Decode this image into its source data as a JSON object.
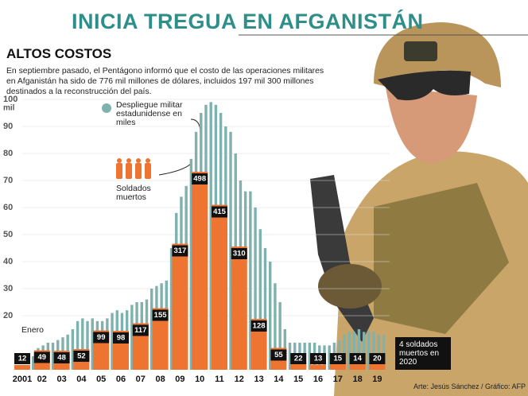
{
  "title": "INICIA TREGUA EN AFGANISTÁN",
  "subtitle": "ALTOS COSTOS",
  "description": "En septiembre pasado, el Pentágono informó que el costo de las operaciones militares en Afganistán ha sido de 776 mil millones de dólares, incluidos 197 mil 300 millones destinados a la reconstrucción del país.",
  "credit": "Arte: Jesús Sánchez / Gráfico: AFP",
  "chart_data": [
    {
      "type": "bar",
      "ylabel": "mil",
      "ylim": [
        0,
        100
      ],
      "yticks": [
        20,
        30,
        40,
        50,
        60,
        70,
        80,
        90,
        100
      ],
      "grid": true,
      "annotations": [
        "Enero"
      ],
      "series": [
        {
          "name": "Despliegue militar estadunidense en miles",
          "color": "#7fb2ae",
          "values": [
            5,
            8,
            9,
            10,
            10,
            11,
            12,
            13,
            15,
            18,
            19,
            18,
            19,
            18,
            18,
            19,
            21,
            22,
            21,
            22,
            24,
            25,
            25,
            26,
            30,
            31,
            32,
            33,
            45,
            58,
            64,
            68,
            78,
            88,
            95,
            98,
            99,
            98,
            95,
            90,
            88,
            80,
            70,
            66,
            66,
            60,
            52,
            45,
            40,
            32,
            25,
            15,
            10,
            10,
            10,
            10,
            10,
            10,
            9,
            9,
            9,
            10,
            11,
            13,
            14,
            14,
            15,
            14,
            14,
            14,
            13,
            13
          ]
        }
      ]
    },
    {
      "type": "bar",
      "categories": [
        "2001",
        "02",
        "03",
        "04",
        "05",
        "06",
        "07",
        "08",
        "09",
        "10",
        "11",
        "12",
        "13",
        "14",
        "15",
        "16",
        "17",
        "18",
        "19"
      ],
      "annotations": [
        "4 soldados muertos en 2020"
      ],
      "series": [
        {
          "name": "Soldados muertos",
          "color": "#ee7431",
          "values": [
            12,
            49,
            48,
            52,
            99,
            98,
            117,
            155,
            317,
            498,
            415,
            310,
            128,
            55,
            22,
            13,
            15,
            14,
            20
          ]
        }
      ]
    }
  ]
}
